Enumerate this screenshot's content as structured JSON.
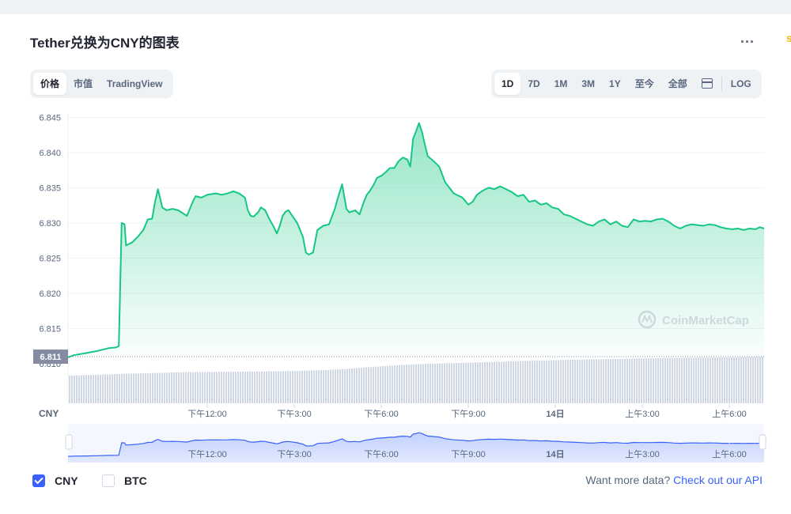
{
  "page": {
    "title": "Tether兑换为CNY的图表",
    "more_label": "...",
    "edge_mark": "s"
  },
  "tabs_left": [
    {
      "label": "价格",
      "active": true
    },
    {
      "label": "市值",
      "active": false
    },
    {
      "label": "TradingView",
      "active": false
    }
  ],
  "tabs_right": [
    {
      "label": "1D",
      "active": true
    },
    {
      "label": "7D",
      "active": false
    },
    {
      "label": "1M",
      "active": false
    },
    {
      "label": "3M",
      "active": false
    },
    {
      "label": "1Y",
      "active": false
    },
    {
      "label": "至今",
      "active": false
    },
    {
      "label": "全部",
      "active": false
    }
  ],
  "calendar_icon": "calendar-icon",
  "log_label": "LOG",
  "legend": [
    {
      "label": "CNY",
      "checked": true
    },
    {
      "label": "BTC",
      "checked": false
    }
  ],
  "footer": {
    "text": "Want more data?",
    "link": "Check out our API"
  },
  "colors": {
    "line": "#16c784",
    "accent": "#3861fb",
    "volume": "#cfd6e4",
    "price_tag": "#858ca2"
  },
  "chart_data": {
    "type": "area",
    "currency_label": "CNY",
    "watermark": "CoinMarketCap",
    "current_price_label": "6.811",
    "ylim": [
      6.811,
      6.8455
    ],
    "yticks": [
      "6.845",
      "6.840",
      "6.835",
      "6.830",
      "6.825",
      "6.820",
      "6.815",
      "6.810"
    ],
    "x_ticks": [
      {
        "t": 2.0,
        "label": "下午12:00"
      },
      {
        "t": 5.0,
        "label": "下午3:00"
      },
      {
        "t": 8.0,
        "label": "下午6:00"
      },
      {
        "t": 11.0,
        "label": "下午9:00"
      },
      {
        "t": 14.0,
        "label": "14日"
      },
      {
        "t": 17.0,
        "label": "上午3:00"
      },
      {
        "t": 20.0,
        "label": "上午6:00"
      }
    ],
    "x_range": [
      -2.8,
      21.2
    ],
    "series": [
      {
        "name": "CNY",
        "points": [
          [
            -2.8,
            6.8109
          ],
          [
            -2.6,
            6.8112
          ],
          [
            -2.2,
            6.8115
          ],
          [
            -1.8,
            6.8118
          ],
          [
            -1.4,
            6.8122
          ],
          [
            -1.15,
            6.8123
          ],
          [
            -1.05,
            6.8125
          ],
          [
            -0.95,
            6.83
          ],
          [
            -0.85,
            6.8298
          ],
          [
            -0.8,
            6.8268
          ],
          [
            -0.6,
            6.8272
          ],
          [
            -0.4,
            6.828
          ],
          [
            -0.2,
            6.829
          ],
          [
            -0.05,
            6.8305
          ],
          [
            0.1,
            6.8306
          ],
          [
            0.2,
            6.833
          ],
          [
            0.3,
            6.8348
          ],
          [
            0.45,
            6.8322
          ],
          [
            0.6,
            6.8318
          ],
          [
            0.8,
            6.832
          ],
          [
            1.0,
            6.8318
          ],
          [
            1.3,
            6.831
          ],
          [
            1.5,
            6.833
          ],
          [
            1.6,
            6.8338
          ],
          [
            1.8,
            6.8336
          ],
          [
            2.0,
            6.834
          ],
          [
            2.3,
            6.8342
          ],
          [
            2.5,
            6.834
          ],
          [
            2.7,
            6.8342
          ],
          [
            2.9,
            6.8345
          ],
          [
            3.1,
            6.8342
          ],
          [
            3.3,
            6.8336
          ],
          [
            3.4,
            6.8318
          ],
          [
            3.5,
            6.831
          ],
          [
            3.6,
            6.8309
          ],
          [
            3.75,
            6.8315
          ],
          [
            3.85,
            6.8322
          ],
          [
            4.0,
            6.8318
          ],
          [
            4.15,
            6.8305
          ],
          [
            4.3,
            6.8294
          ],
          [
            4.4,
            6.8285
          ],
          [
            4.5,
            6.8296
          ],
          [
            4.6,
            6.831
          ],
          [
            4.7,
            6.8316
          ],
          [
            4.8,
            6.8318
          ],
          [
            4.9,
            6.8312
          ],
          [
            5.1,
            6.83
          ],
          [
            5.3,
            6.828
          ],
          [
            5.4,
            6.8258
          ],
          [
            5.5,
            6.8255
          ],
          [
            5.65,
            6.8258
          ],
          [
            5.8,
            6.829
          ],
          [
            6.0,
            6.8296
          ],
          [
            6.2,
            6.8298
          ],
          [
            6.4,
            6.832
          ],
          [
            6.5,
            6.8335
          ],
          [
            6.65,
            6.8355
          ],
          [
            6.8,
            6.832
          ],
          [
            6.9,
            6.8315
          ],
          [
            7.1,
            6.8318
          ],
          [
            7.25,
            6.8312
          ],
          [
            7.4,
            6.833
          ],
          [
            7.5,
            6.834
          ],
          [
            7.6,
            6.8345
          ],
          [
            7.75,
            6.8355
          ],
          [
            7.85,
            6.8364
          ],
          [
            8.0,
            6.8367
          ],
          [
            8.15,
            6.8372
          ],
          [
            8.3,
            6.8378
          ],
          [
            8.45,
            6.8378
          ],
          [
            8.6,
            6.8388
          ],
          [
            8.75,
            6.8393
          ],
          [
            8.9,
            6.839
          ],
          [
            9.0,
            6.838
          ],
          [
            9.1,
            6.842
          ],
          [
            9.2,
            6.843
          ],
          [
            9.3,
            6.8442
          ],
          [
            9.4,
            6.843
          ],
          [
            9.5,
            6.8412
          ],
          [
            9.6,
            6.8395
          ],
          [
            9.8,
            6.8388
          ],
          [
            10.0,
            6.838
          ],
          [
            10.2,
            6.8358
          ],
          [
            10.5,
            6.8342
          ],
          [
            10.8,
            6.8336
          ],
          [
            11.0,
            6.8326
          ],
          [
            11.15,
            6.833
          ],
          [
            11.3,
            6.834
          ],
          [
            11.5,
            6.8346
          ],
          [
            11.7,
            6.835
          ],
          [
            11.9,
            6.8348
          ],
          [
            12.1,
            6.8352
          ],
          [
            12.3,
            6.8348
          ],
          [
            12.5,
            6.8344
          ],
          [
            12.7,
            6.8338
          ],
          [
            12.9,
            6.834
          ],
          [
            13.1,
            6.833
          ],
          [
            13.3,
            6.8332
          ],
          [
            13.5,
            6.8326
          ],
          [
            13.7,
            6.8328
          ],
          [
            13.9,
            6.8322
          ],
          [
            14.1,
            6.832
          ],
          [
            14.3,
            6.8312
          ],
          [
            14.5,
            6.831
          ],
          [
            14.7,
            6.8306
          ],
          [
            14.9,
            6.8302
          ],
          [
            15.1,
            6.8298
          ],
          [
            15.3,
            6.8296
          ],
          [
            15.5,
            6.8302
          ],
          [
            15.7,
            6.8305
          ],
          [
            15.9,
            6.8298
          ],
          [
            16.1,
            6.8302
          ],
          [
            16.3,
            6.8296
          ],
          [
            16.5,
            6.8294
          ],
          [
            16.7,
            6.8305
          ],
          [
            16.9,
            6.8302
          ],
          [
            17.1,
            6.8303
          ],
          [
            17.3,
            6.8302
          ],
          [
            17.5,
            6.8305
          ],
          [
            17.7,
            6.8306
          ],
          [
            17.9,
            6.8302
          ],
          [
            18.1,
            6.8296
          ],
          [
            18.3,
            6.8292
          ],
          [
            18.5,
            6.8296
          ],
          [
            18.7,
            6.8298
          ],
          [
            18.9,
            6.8297
          ],
          [
            19.1,
            6.8296
          ],
          [
            19.3,
            6.8298
          ],
          [
            19.5,
            6.8297
          ],
          [
            19.7,
            6.8294
          ],
          [
            19.9,
            6.8292
          ],
          [
            20.1,
            6.8291
          ],
          [
            20.3,
            6.8292
          ],
          [
            20.5,
            6.829
          ],
          [
            20.7,
            6.8292
          ],
          [
            20.9,
            6.8291
          ],
          [
            21.05,
            6.8294
          ],
          [
            21.2,
            6.8292
          ]
        ]
      }
    ],
    "volume": [
      [
        -2.8,
        0.5
      ],
      [
        -1.0,
        0.53
      ],
      [
        1.0,
        0.56
      ],
      [
        3.0,
        0.57
      ],
      [
        5.0,
        0.58
      ],
      [
        6.0,
        0.6
      ],
      [
        7.0,
        0.63
      ],
      [
        8.0,
        0.67
      ],
      [
        9.0,
        0.7
      ],
      [
        10.0,
        0.72
      ],
      [
        12.0,
        0.75
      ],
      [
        14.0,
        0.78
      ],
      [
        16.0,
        0.8
      ],
      [
        18.0,
        0.82
      ],
      [
        20.0,
        0.83
      ],
      [
        21.2,
        0.84
      ]
    ],
    "navigator_ticks": [
      "下午12:00",
      "下午3:00",
      "下午6:00",
      "下午9:00",
      "14日",
      "上午3:00",
      "上午6:00"
    ]
  }
}
